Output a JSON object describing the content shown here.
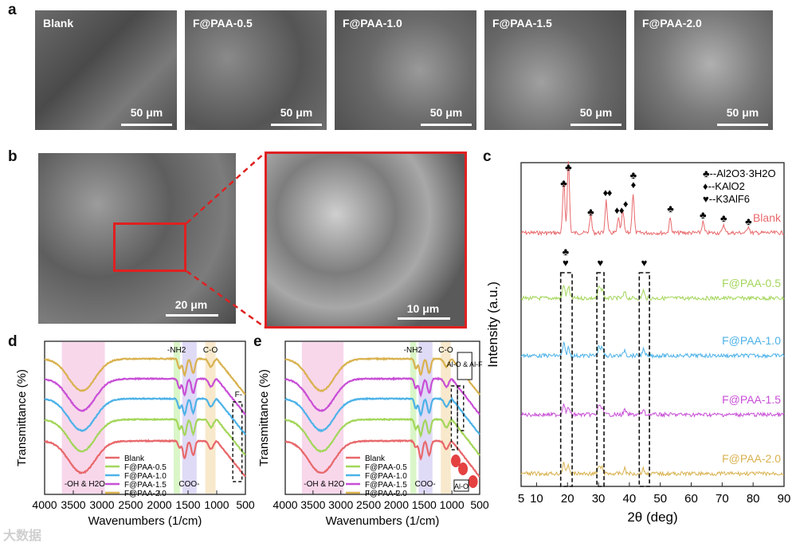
{
  "panel_labels": {
    "a": "a",
    "b": "b",
    "c": "c",
    "d": "d",
    "e": "e"
  },
  "panel_a": {
    "images": [
      {
        "label": "Blank",
        "scale": "50 μm"
      },
      {
        "label": "F@PAA-0.5",
        "scale": "50 μm"
      },
      {
        "label": "F@PAA-1.0",
        "scale": "50 μm"
      },
      {
        "label": "F@PAA-1.5",
        "scale": "50 μm"
      },
      {
        "label": "F@PAA-2.0",
        "scale": "50 μm"
      }
    ]
  },
  "panel_b": {
    "left_scale": "20 μm",
    "right_scale": "10 μm"
  },
  "colors": {
    "blank": "#e8686b",
    "p05": "#a3d65a",
    "p10": "#4db2e8",
    "p15": "#c84fd6",
    "p20": "#d9b24f",
    "highlight": "#e02020"
  },
  "chart_data": [
    {
      "type": "line",
      "panel": "c",
      "xlabel": "2θ (deg)",
      "ylabel": "Intensity (a.u.)",
      "xlim": [
        5,
        90
      ],
      "x_ticks": [
        "5",
        "10",
        "20",
        "30",
        "40",
        "50",
        "60",
        "70",
        "80",
        "90"
      ],
      "legend": [
        "♣--Al2O3·3H2O",
        "♦--KAlO2",
        "♥--K3AlF6"
      ],
      "series": [
        {
          "name": "Blank",
          "peaks": [
            [
              18.8,
              0.7
            ],
            [
              20.3,
              1.0
            ],
            [
              27.5,
              0.25
            ],
            [
              32.5,
              0.45
            ],
            [
              36.5,
              0.2
            ],
            [
              37.9,
              0.3
            ],
            [
              41.2,
              0.55
            ],
            [
              53.2,
              0.2
            ],
            [
              63.8,
              0.15
            ],
            [
              70.5,
              0.12
            ],
            [
              78.5,
              0.1
            ]
          ]
        },
        {
          "name": "F@PAA-0.5",
          "peaks": [
            [
              18.8,
              0.35
            ],
            [
              20.3,
              0.3
            ],
            [
              30.2,
              0.3
            ],
            [
              31.2,
              0.25
            ],
            [
              38.5,
              0.15
            ],
            [
              44.5,
              0.2
            ]
          ]
        },
        {
          "name": "F@PAA-1.0",
          "peaks": [
            [
              18.8,
              0.3
            ],
            [
              20.3,
              0.2
            ],
            [
              30.2,
              0.25
            ],
            [
              31.2,
              0.2
            ],
            [
              38.5,
              0.15
            ],
            [
              44.5,
              0.15
            ]
          ]
        },
        {
          "name": "F@PAA-1.5",
          "peaks": [
            [
              18.8,
              0.3
            ],
            [
              20.3,
              0.2
            ],
            [
              30.2,
              0.25
            ],
            [
              31.2,
              0.2
            ],
            [
              38.5,
              0.12
            ],
            [
              44.5,
              0.12
            ]
          ]
        },
        {
          "name": "F@PAA-2.0",
          "peaks": [
            [
              18.8,
              0.3
            ],
            [
              20.3,
              0.2
            ],
            [
              30.2,
              0.2
            ],
            [
              31.2,
              0.15
            ],
            [
              38.5,
              0.12
            ],
            [
              44.5,
              0.12
            ]
          ]
        }
      ]
    },
    {
      "type": "line",
      "panel": "d",
      "xlabel": "Wavenumbers (1/cm)",
      "ylabel": "Transmittance (%)",
      "xlim": [
        4000,
        500
      ],
      "x_ticks": [
        "4000",
        "3500",
        "3000",
        "2500",
        "2000",
        "1500",
        "1000",
        "500"
      ],
      "band_labels": [
        "-OH & H2O",
        "-NH2",
        "COO-",
        "C-O",
        "F-"
      ],
      "series": [
        {
          "name": "Blank"
        },
        {
          "name": "F@PAA-0.5"
        },
        {
          "name": "F@PAA-1.0"
        },
        {
          "name": "F@PAA-1.5"
        },
        {
          "name": "F@PAA-2.0"
        }
      ]
    },
    {
      "type": "line",
      "panel": "e",
      "xlabel": "Wavenumbers (1/cm)",
      "ylabel": "Transmittance (%)",
      "xlim": [
        4000,
        500
      ],
      "x_ticks": [
        "4000",
        "3500",
        "3000",
        "2500",
        "2000",
        "1500",
        "1000",
        "500"
      ],
      "band_labels": [
        "-OH & H2O",
        "-NH2",
        "COO-",
        "C-O",
        "Al-O & Al-F",
        "Al-O"
      ],
      "series": [
        {
          "name": "Blank"
        },
        {
          "name": "F@PAA-0.5"
        },
        {
          "name": "F@PAA-1.0"
        },
        {
          "name": "F@PAA-1.5"
        },
        {
          "name": "F@PAA-2.0"
        }
      ]
    }
  ],
  "watermark": "大数据"
}
